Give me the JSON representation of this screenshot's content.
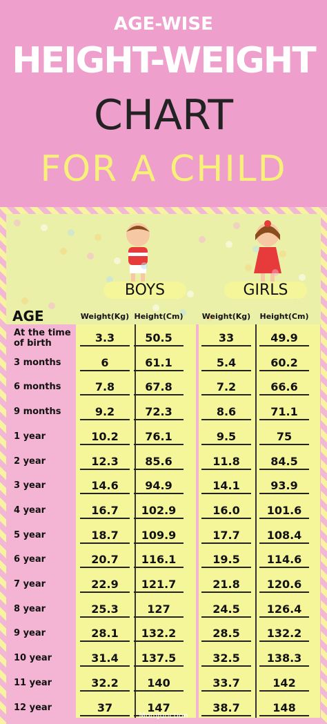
{
  "header": {
    "line1": "AGE-WISE",
    "line2": "HEIGHT-WEIGHT",
    "line3": "CHART",
    "line4": "FOR A CHILD"
  },
  "table": {
    "groups": [
      "BOYS",
      "GIRLS"
    ],
    "age_header": "AGE",
    "columns": [
      "Weight(Kg)",
      "Height(Cm)",
      "Weight(Kg)",
      "Height(Cm)"
    ],
    "rows": [
      [
        "At the time of birth",
        "3.3",
        "50.5",
        "33",
        "49.9"
      ],
      [
        "3 months",
        "6",
        "61.1",
        "5.4",
        "60.2"
      ],
      [
        "6 months",
        "7.8",
        "67.8",
        "7.2",
        "66.6"
      ],
      [
        "9 months",
        "9.2",
        "72.3",
        "8.6",
        "71.1"
      ],
      [
        "1 year",
        "10.2",
        "76.1",
        "9.5",
        "75"
      ],
      [
        "2 year",
        "12.3",
        "85.6",
        "11.8",
        "84.5"
      ],
      [
        "3 year",
        "14.6",
        "94.9",
        "14.1",
        "93.9"
      ],
      [
        "4 year",
        "16.7",
        "102.9",
        "16.0",
        "101.6"
      ],
      [
        "5 year",
        "18.7",
        "109.9",
        "17.7",
        "108.4"
      ],
      [
        "6 year",
        "20.7",
        "116.1",
        "19.5",
        "114.6"
      ],
      [
        "7 year",
        "22.9",
        "121.7",
        "21.8",
        "120.6"
      ],
      [
        "8 year",
        "25.3",
        "127",
        "24.5",
        "126.4"
      ],
      [
        "9 year",
        "28.1",
        "132.2",
        "28.5",
        "132.2"
      ],
      [
        "10 year",
        "31.4",
        "137.5",
        "32.5",
        "138.3"
      ],
      [
        "11 year",
        "32.2",
        "140",
        "33.7",
        "142"
      ],
      [
        "12 year",
        "37",
        "147",
        "38.7",
        "148"
      ]
    ]
  },
  "footer": {
    "logo": "MomJunction"
  }
}
